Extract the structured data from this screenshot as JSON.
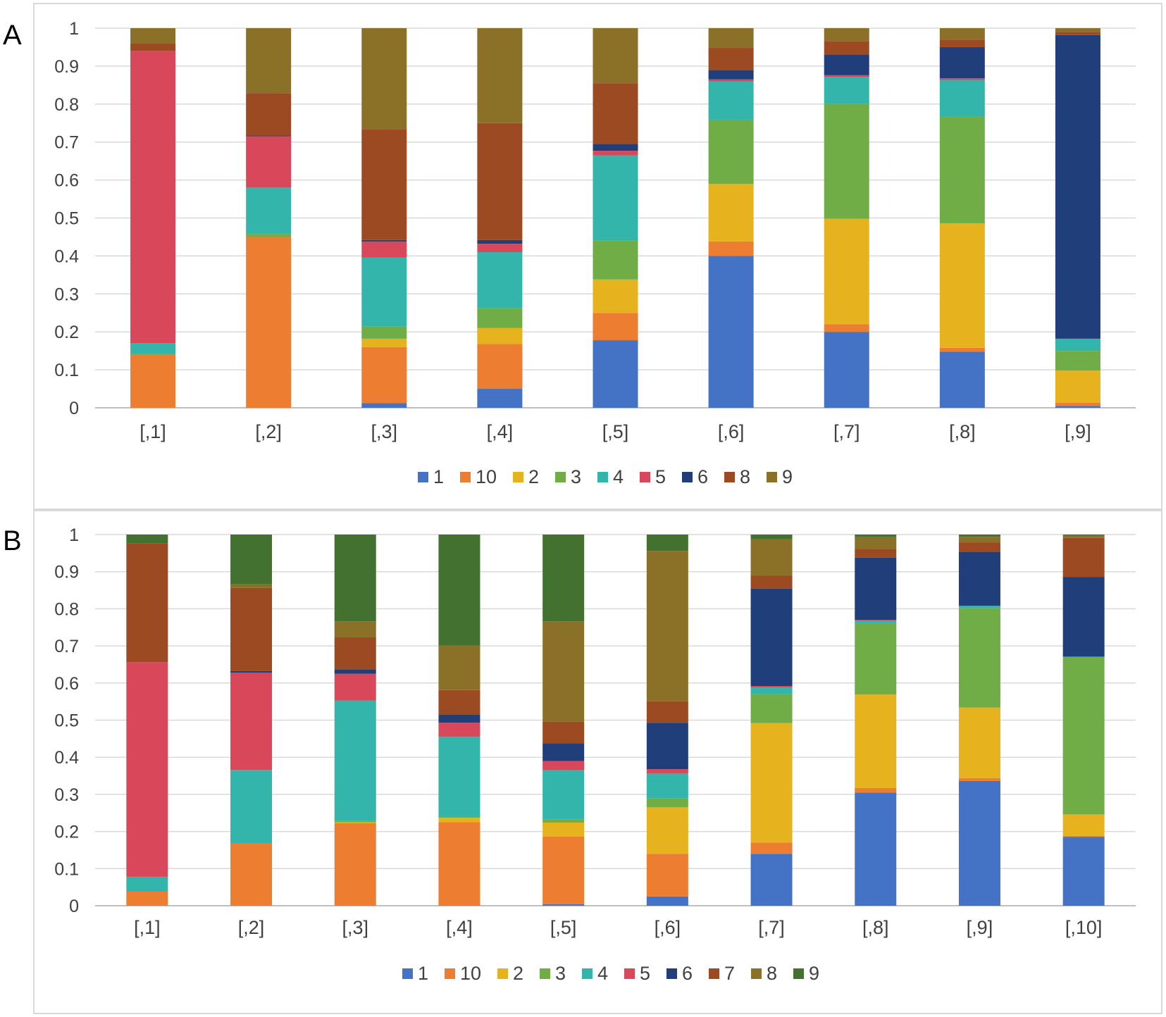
{
  "panels": [
    {
      "letter": "A",
      "chart_data": {
        "type": "bar",
        "stacked": true,
        "categories": [
          "[,1]",
          "[,2]",
          "[,3]",
          "[,4]",
          "[,5]",
          "[,6]",
          "[,7]",
          "[,8]",
          "[,9]"
        ],
        "ylim": [
          0,
          1
        ],
        "yticks": [
          "0",
          "0.1",
          "0.2",
          "0.3",
          "0.4",
          "0.5",
          "0.6",
          "0.7",
          "0.8",
          "0.9",
          "1"
        ],
        "grid": true,
        "legend_position": "bottom",
        "series": [
          {
            "name": "1",
            "color": "#4472C4",
            "values": [
              0.0,
              0.0,
              0.012,
              0.05,
              0.178,
              0.4,
              0.2,
              0.148,
              0.005
            ]
          },
          {
            "name": "10",
            "color": "#ED7D31",
            "values": [
              0.14,
              0.45,
              0.148,
              0.118,
              0.072,
              0.038,
              0.02,
              0.01,
              0.008
            ]
          },
          {
            "name": "2",
            "color": "#E6B31E",
            "values": [
              0.0,
              0.0,
              0.022,
              0.042,
              0.088,
              0.152,
              0.278,
              0.328,
              0.085
            ]
          },
          {
            "name": "3",
            "color": "#70AD47",
            "values": [
              0.002,
              0.008,
              0.032,
              0.052,
              0.102,
              0.168,
              0.302,
              0.282,
              0.052
            ]
          },
          {
            "name": "4",
            "color": "#33B5AC",
            "values": [
              0.028,
              0.122,
              0.182,
              0.148,
              0.225,
              0.102,
              0.072,
              0.095,
              0.032
            ]
          },
          {
            "name": "5",
            "color": "#D9485A",
            "values": [
              0.77,
              0.135,
              0.042,
              0.022,
              0.012,
              0.005,
              0.004,
              0.005,
              0.0
            ]
          },
          {
            "name": "6",
            "color": "#203F7A",
            "values": [
              0.0,
              0.002,
              0.004,
              0.01,
              0.018,
              0.025,
              0.055,
              0.082,
              0.8
            ]
          },
          {
            "name": "8",
            "color": "#9C4A22",
            "values": [
              0.02,
              0.112,
              0.292,
              0.308,
              0.16,
              0.058,
              0.035,
              0.02,
              0.008
            ]
          },
          {
            "name": "9",
            "color": "#8B7128",
            "values": [
              0.04,
              0.171,
              0.266,
              0.25,
              0.145,
              0.052,
              0.034,
              0.03,
              0.01
            ]
          }
        ]
      }
    },
    {
      "letter": "B",
      "chart_data": {
        "type": "bar",
        "stacked": true,
        "categories": [
          "[,1]",
          "[,2]",
          "[,3]",
          "[,4]",
          "[,5]",
          "[,6]",
          "[,7]",
          "[,8]",
          "[,9]",
          "[,10]"
        ],
        "ylim": [
          0,
          1
        ],
        "yticks": [
          "0",
          "0.1",
          "0.2",
          "0.3",
          "0.4",
          "0.5",
          "0.6",
          "0.7",
          "0.8",
          "0.9",
          "1"
        ],
        "grid": true,
        "legend_position": "bottom",
        "series": [
          {
            "name": "1",
            "color": "#4472C4",
            "values": [
              0.0,
              0.0,
              0.0,
              0.0,
              0.004,
              0.025,
              0.14,
              0.305,
              0.336,
              0.185
            ]
          },
          {
            "name": "10",
            "color": "#ED7D31",
            "values": [
              0.038,
              0.168,
              0.222,
              0.225,
              0.182,
              0.115,
              0.03,
              0.012,
              0.008,
              0.003
            ]
          },
          {
            "name": "2",
            "color": "#E6B31E",
            "values": [
              0.0,
              0.0,
              0.003,
              0.012,
              0.038,
              0.125,
              0.322,
              0.252,
              0.19,
              0.058
            ]
          },
          {
            "name": "3",
            "color": "#70AD47",
            "values": [
              0.0,
              0.0,
              0.003,
              0.003,
              0.008,
              0.025,
              0.078,
              0.192,
              0.268,
              0.422
            ]
          },
          {
            "name": "4",
            "color": "#33B5AC",
            "values": [
              0.04,
              0.198,
              0.325,
              0.215,
              0.133,
              0.066,
              0.018,
              0.006,
              0.006,
              0.003
            ]
          },
          {
            "name": "5",
            "color": "#D9485A",
            "values": [
              0.578,
              0.262,
              0.072,
              0.038,
              0.025,
              0.012,
              0.004,
              0.003,
              0.0,
              0.0
            ]
          },
          {
            "name": "6",
            "color": "#203F7A",
            "values": [
              0.0,
              0.004,
              0.012,
              0.022,
              0.048,
              0.125,
              0.262,
              0.168,
              0.146,
              0.215
            ]
          },
          {
            "name": "7",
            "color": "#9C4A22",
            "values": [
              0.32,
              0.224,
              0.086,
              0.066,
              0.058,
              0.058,
              0.035,
              0.023,
              0.025,
              0.105
            ]
          },
          {
            "name": "8",
            "color": "#8B7128",
            "values": [
              0.0,
              0.01,
              0.043,
              0.12,
              0.27,
              0.405,
              0.098,
              0.032,
              0.015,
              0.006
            ]
          },
          {
            "name": "9",
            "color": "#43712F",
            "values": [
              0.024,
              0.134,
              0.234,
              0.299,
              0.234,
              0.044,
              0.013,
              0.007,
              0.006,
              0.003
            ]
          }
        ]
      }
    }
  ]
}
